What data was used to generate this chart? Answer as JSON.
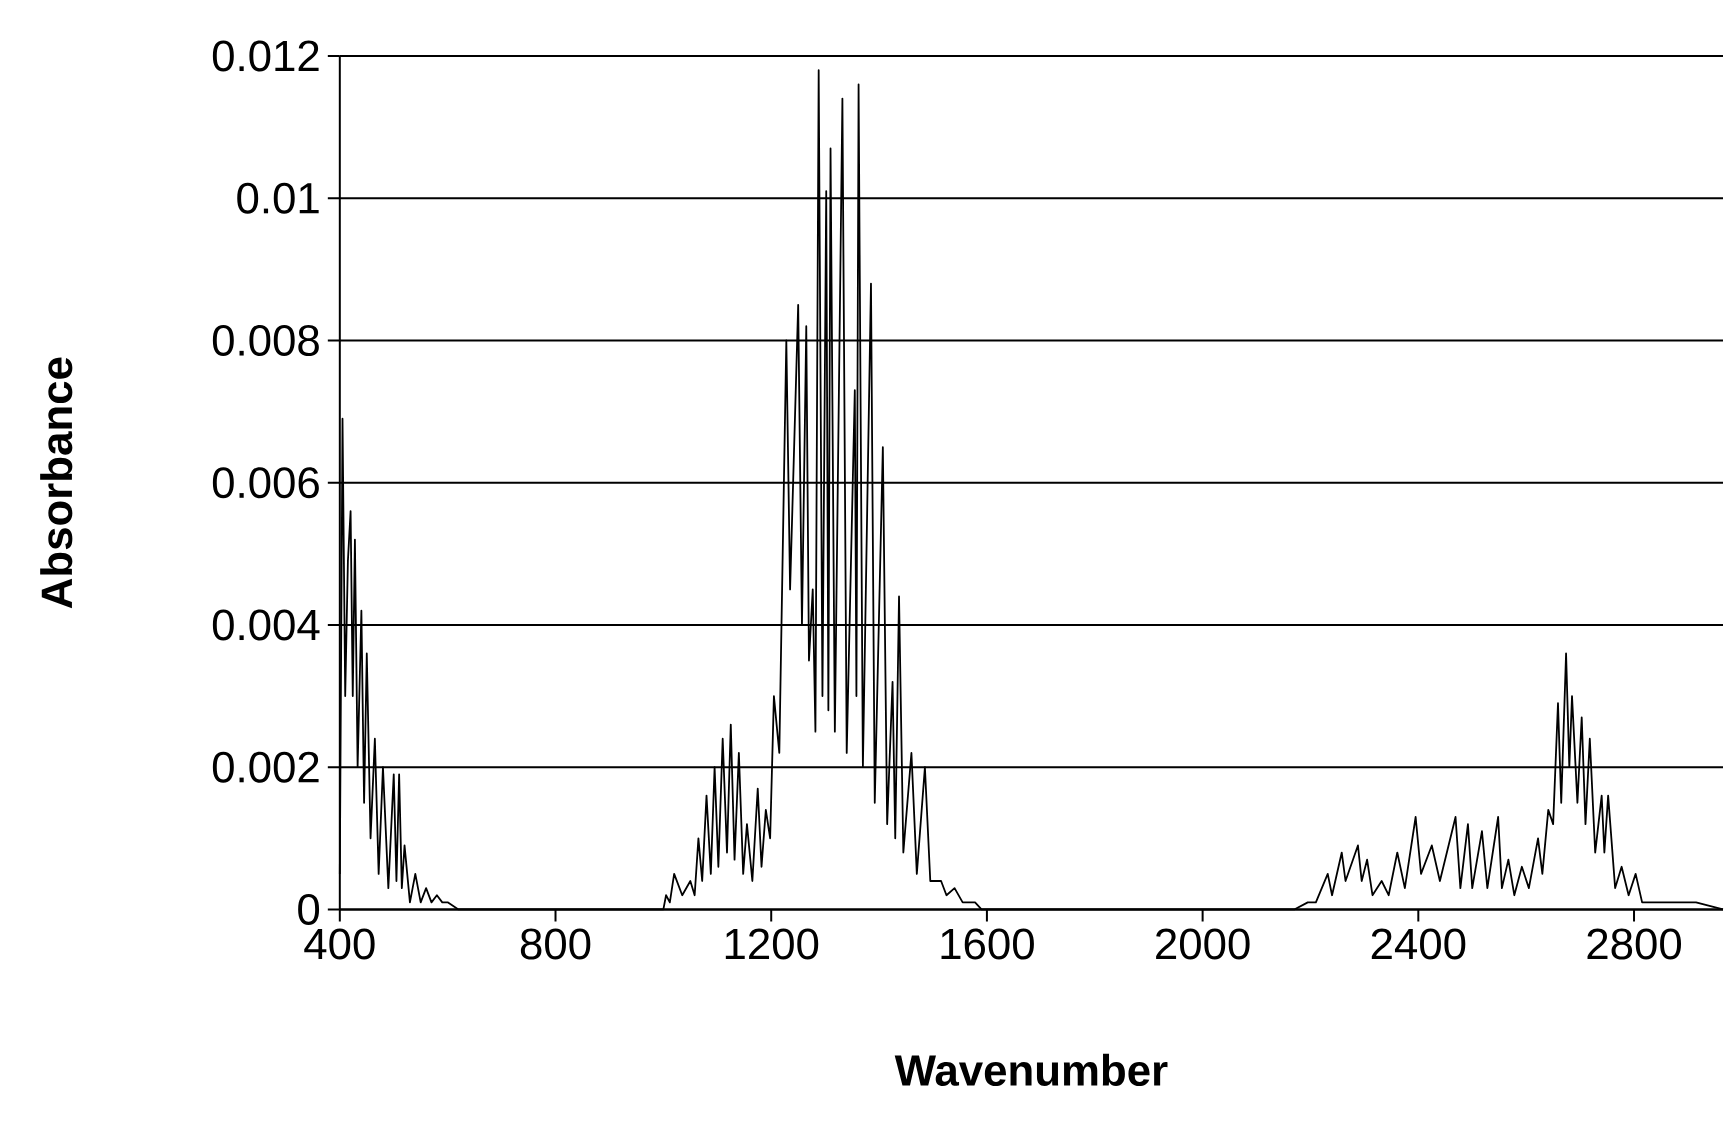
{
  "chart_data": {
    "type": "line",
    "xlabel": "Wavenumber",
    "ylabel": "Absorbance",
    "xlim": [
      400,
      2965
    ],
    "ylim": [
      0,
      0.012
    ],
    "xticks": [
      400,
      800,
      1200,
      1600,
      2000,
      2400,
      2800
    ],
    "yticks": [
      0,
      0.002,
      0.004,
      0.006,
      0.008,
      0.01,
      0.012
    ],
    "grid": "y",
    "marker": "none",
    "line_style": "solid",
    "series": [
      {
        "color": "#000000",
        "x": [
          400,
          405,
          410,
          415,
          420,
          424,
          428,
          433,
          440,
          445,
          450,
          457,
          465,
          472,
          480,
          490,
          500,
          505,
          510,
          515,
          520,
          530,
          540,
          550,
          560,
          570,
          580,
          590,
          600,
          620,
          1000,
          1005,
          1012,
          1020,
          1035,
          1050,
          1058,
          1065,
          1072,
          1080,
          1088,
          1095,
          1102,
          1110,
          1118,
          1125,
          1132,
          1140,
          1148,
          1155,
          1165,
          1175,
          1182,
          1190,
          1198,
          1205,
          1215,
          1228,
          1235,
          1250,
          1257,
          1265,
          1270,
          1277,
          1282,
          1288,
          1295,
          1302,
          1306,
          1310,
          1318,
          1332,
          1340,
          1355,
          1358,
          1362,
          1370,
          1385,
          1392,
          1407,
          1415,
          1425,
          1430,
          1437,
          1445,
          1460,
          1470,
          1485,
          1495,
          1515,
          1525,
          1540,
          1555,
          1578,
          1590,
          2170,
          2195,
          2210,
          2232,
          2240,
          2258,
          2265,
          2288,
          2295,
          2305,
          2315,
          2332,
          2345,
          2361,
          2375,
          2395,
          2405,
          2425,
          2440,
          2469,
          2478,
          2492,
          2500,
          2518,
          2528,
          2548,
          2555,
          2567,
          2578,
          2592,
          2605,
          2622,
          2630,
          2641,
          2650,
          2659,
          2665,
          2674,
          2680,
          2685,
          2695,
          2703,
          2710,
          2718,
          2728,
          2740,
          2745,
          2752,
          2765,
          2777,
          2790,
          2803,
          2815,
          2840,
          2915,
          2965
        ],
        "values": [
          0.0005,
          0.0069,
          0.003,
          0.0049,
          0.0056,
          0.003,
          0.0052,
          0.002,
          0.0042,
          0.0015,
          0.0036,
          0.001,
          0.0024,
          0.0005,
          0.002,
          0.0003,
          0.0019,
          0.0004,
          0.0019,
          0.0003,
          0.0009,
          0.0001,
          0.0005,
          0.0001,
          0.0003,
          0.0001,
          0.0002,
          0.0001,
          0.0001,
          0,
          0,
          0.0002,
          0.0001,
          0.0005,
          0.0002,
          0.0004,
          0.0002,
          0.001,
          0.0004,
          0.0016,
          0.0005,
          0.002,
          0.0006,
          0.0024,
          0.0008,
          0.0026,
          0.0007,
          0.0022,
          0.0005,
          0.0012,
          0.0004,
          0.0017,
          0.0006,
          0.0014,
          0.001,
          0.003,
          0.0022,
          0.008,
          0.0045,
          0.0085,
          0.004,
          0.0082,
          0.0035,
          0.0045,
          0.0025,
          0.0118,
          0.003,
          0.0101,
          0.0028,
          0.0107,
          0.0025,
          0.0114,
          0.0022,
          0.0073,
          0.003,
          0.0116,
          0.002,
          0.0088,
          0.0015,
          0.0065,
          0.0012,
          0.0032,
          0.001,
          0.0044,
          0.0008,
          0.0022,
          0.0005,
          0.002,
          0.0004,
          0.0004,
          0.0002,
          0.0003,
          0.0001,
          0.0001,
          0,
          0,
          0.0001,
          0.0001,
          0.0005,
          0.0002,
          0.0008,
          0.0004,
          0.0009,
          0.0004,
          0.0007,
          0.0002,
          0.0004,
          0.0002,
          0.0008,
          0.0003,
          0.0013,
          0.0005,
          0.0009,
          0.0004,
          0.0013,
          0.0003,
          0.0012,
          0.0003,
          0.0011,
          0.0003,
          0.0013,
          0.0003,
          0.0007,
          0.0002,
          0.0006,
          0.0003,
          0.001,
          0.0005,
          0.0014,
          0.0012,
          0.0029,
          0.0015,
          0.0036,
          0.002,
          0.003,
          0.0015,
          0.0027,
          0.0012,
          0.0024,
          0.0008,
          0.0016,
          0.0008,
          0.0016,
          0.0003,
          0.0006,
          0.0002,
          0.0005,
          0.0001,
          0.0001,
          0.0001,
          0
        ]
      }
    ]
  }
}
